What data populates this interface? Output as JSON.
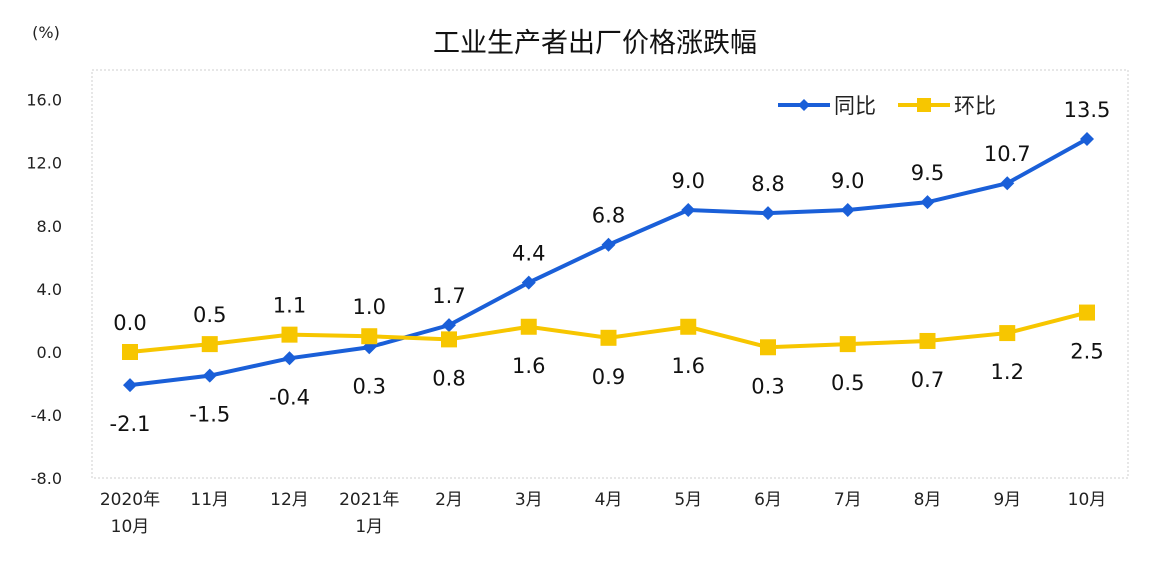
{
  "chart_data": {
    "type": "line",
    "title": "工业生产者出厂价格涨跌幅",
    "ylabel": "(%)",
    "ylim": [
      -8,
      16
    ],
    "yticks": [
      "16.0",
      "12.0",
      "8.0",
      "4.0",
      "0.0",
      "-4.0",
      "-8.0"
    ],
    "ytick_values": [
      16,
      12,
      8,
      4,
      0,
      -4,
      -8
    ],
    "categories": [
      [
        "2020年",
        "10月"
      ],
      [
        "11月"
      ],
      [
        "12月"
      ],
      [
        "2021年",
        "1月"
      ],
      [
        "2月"
      ],
      [
        "3月"
      ],
      [
        "4月"
      ],
      [
        "5月"
      ],
      [
        "6月"
      ],
      [
        "7月"
      ],
      [
        "8月"
      ],
      [
        "9月"
      ],
      [
        "10月"
      ]
    ],
    "series": [
      {
        "name": "同比",
        "color": "#1a5fd8",
        "marker": "diamond",
        "values": [
          -2.1,
          -1.5,
          -0.4,
          0.3,
          1.7,
          4.4,
          6.8,
          9.0,
          8.8,
          9.0,
          9.5,
          10.7,
          13.5
        ]
      },
      {
        "name": "环比",
        "color": "#f7c600",
        "marker": "square",
        "values": [
          0.0,
          0.5,
          1.1,
          1.0,
          0.8,
          1.6,
          0.9,
          1.6,
          0.3,
          0.5,
          0.7,
          1.2,
          2.5
        ]
      }
    ],
    "legend": "top-right",
    "grid": false
  }
}
